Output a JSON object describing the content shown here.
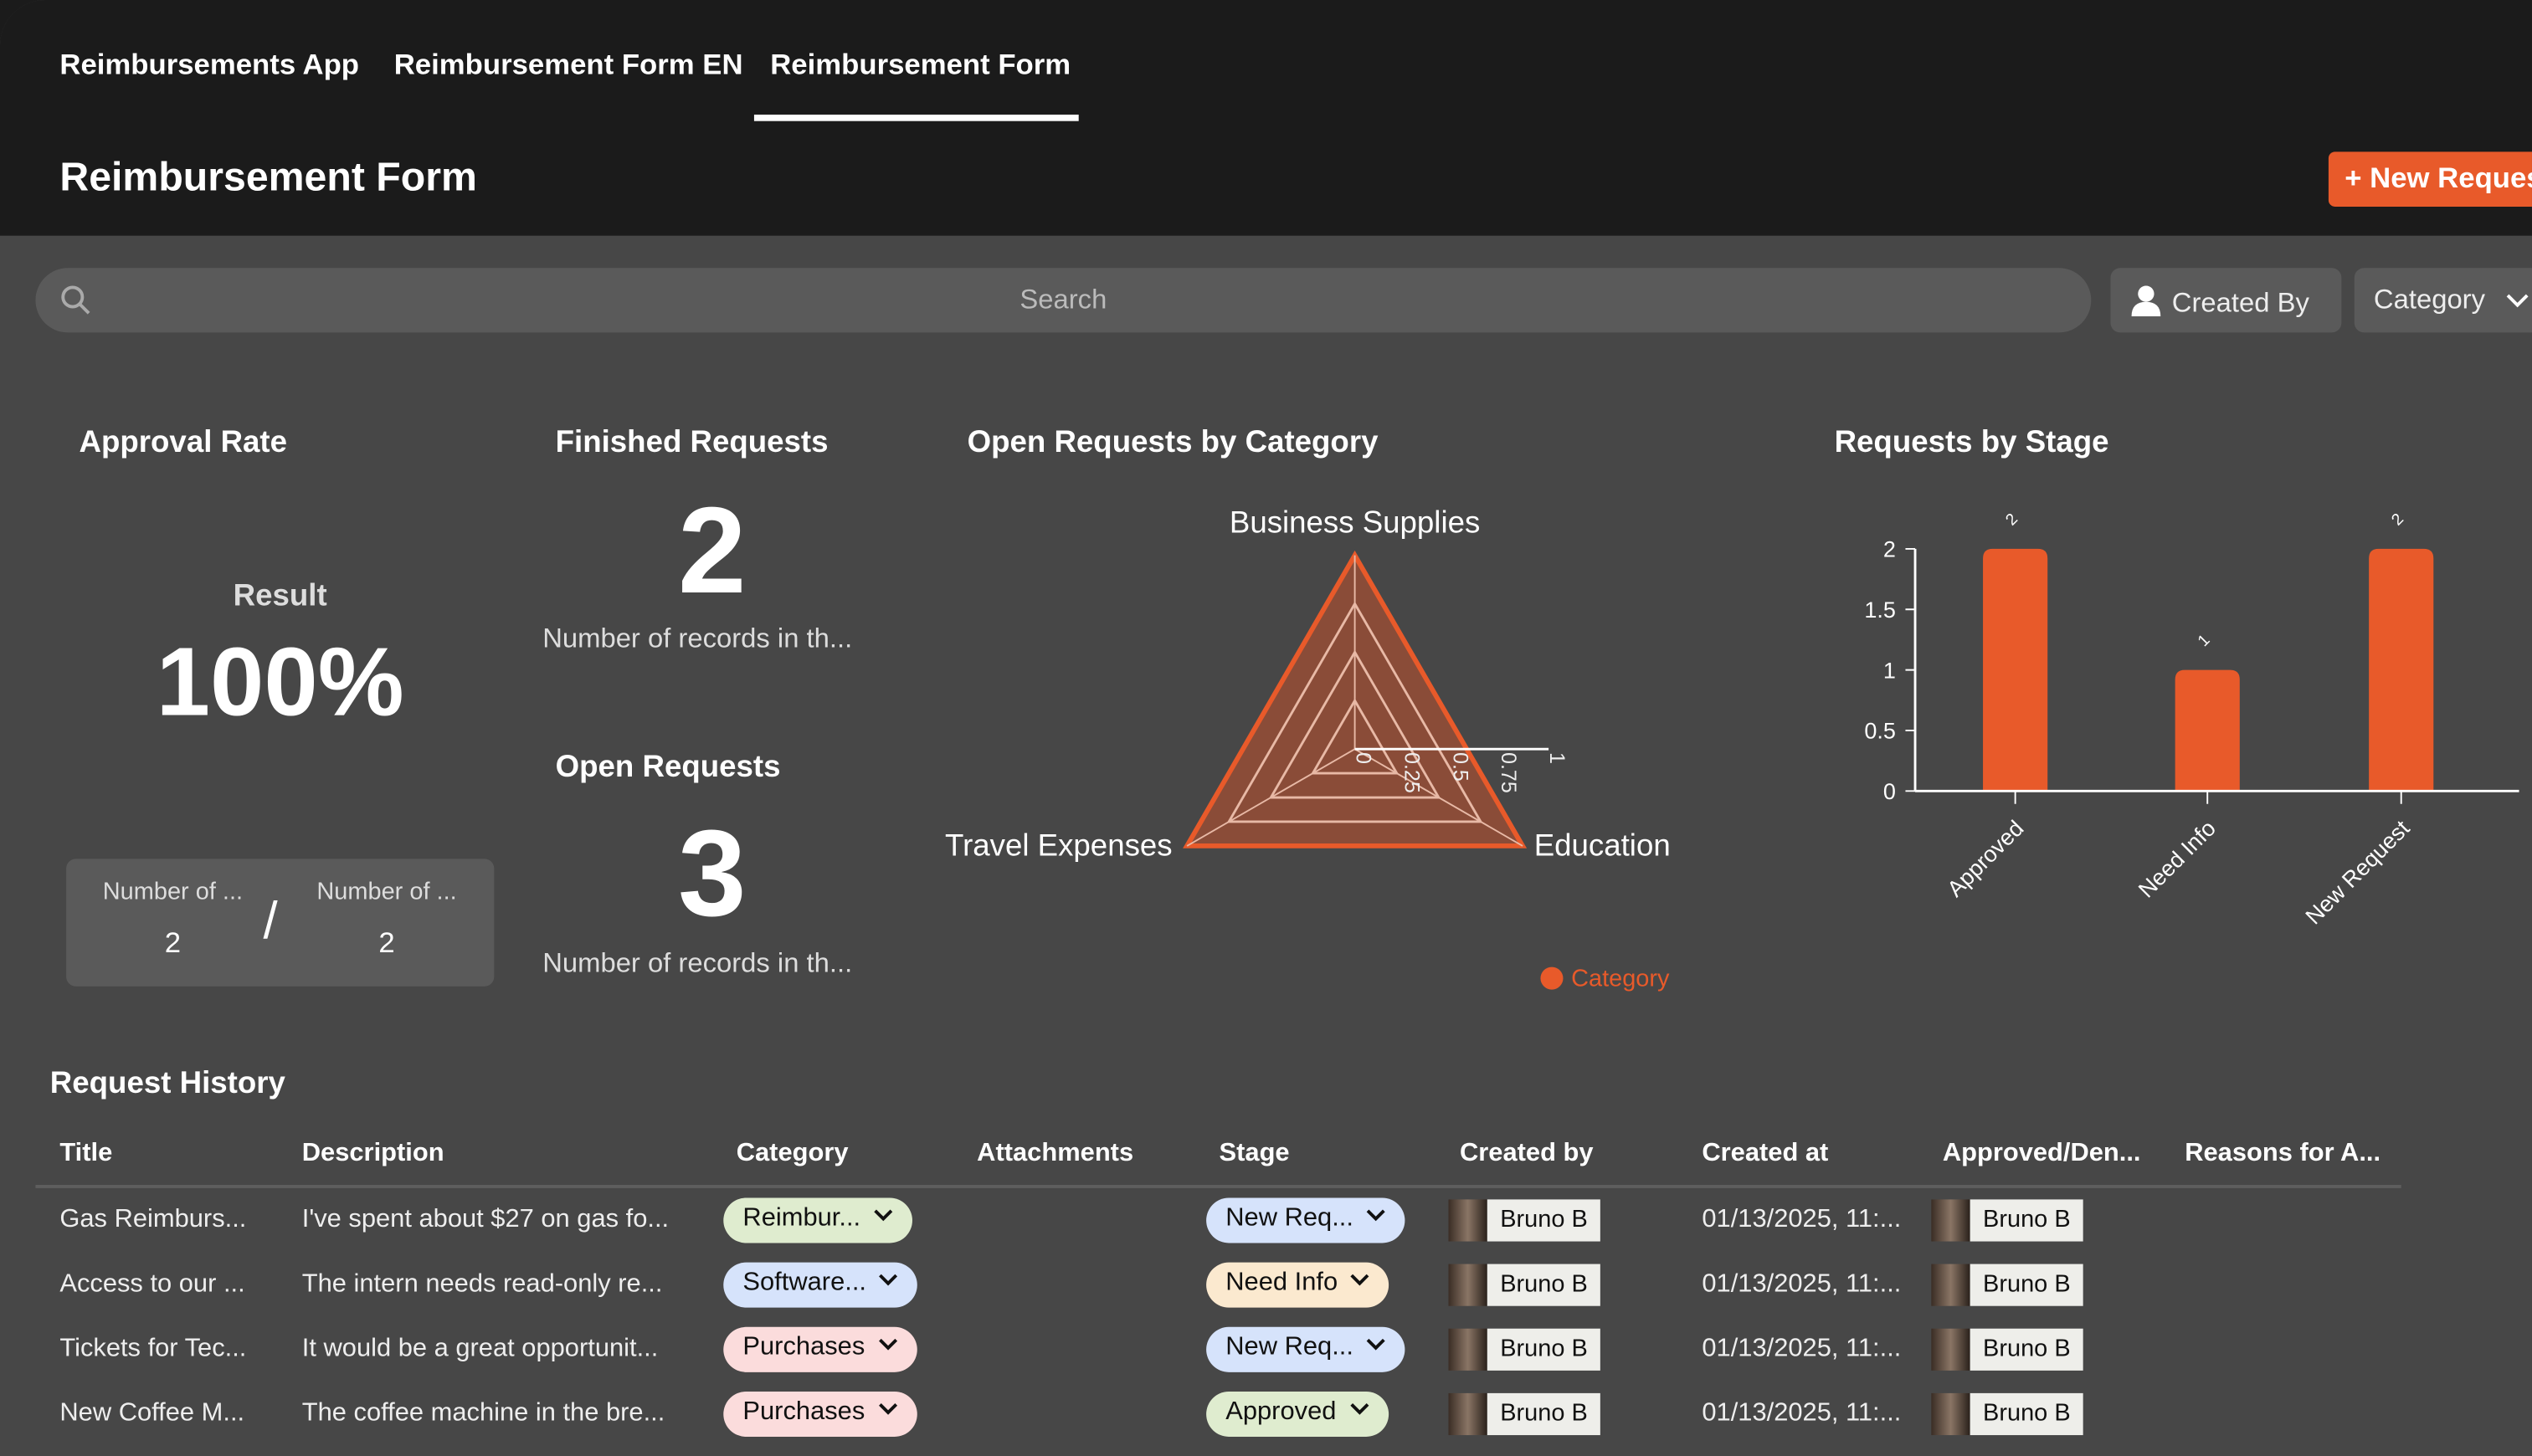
{
  "nav": {
    "tabs": [
      "Reimbursements App",
      "Reimbursement Form EN",
      "Reimbursement Form"
    ],
    "active_tab": 2
  },
  "header": {
    "title": "Reimbursement Form",
    "new_button": "+ New Request"
  },
  "filters": {
    "search_placeholder": "Search",
    "created_by": "Created By",
    "category": "Category"
  },
  "colors": {
    "accent": "#e85a2a",
    "background": "#474747",
    "header": "#1b1b1b"
  },
  "approval": {
    "title": "Approval Rate",
    "result_label": "Result",
    "value": "100%",
    "numerator_label": "Number of ...",
    "numerator": "2",
    "denominator_label": "Number of ...",
    "denominator": "2",
    "separator": "/"
  },
  "finished": {
    "title": "Finished Requests",
    "value": "2",
    "caption": "Number of records in th..."
  },
  "open": {
    "title": "Open Requests",
    "value": "3",
    "caption": "Number of records in th..."
  },
  "chart_data": [
    {
      "type": "radar",
      "title": "Open Requests by Category",
      "axes": [
        "Business Supplies",
        "Education",
        "Travel Expenses"
      ],
      "series": [
        {
          "name": "Category",
          "values": [
            1,
            1,
            1
          ]
        }
      ],
      "range": [
        0,
        1
      ],
      "ticks": [
        "0",
        "0.25",
        "0.5",
        "0.75",
        "1"
      ],
      "legend": "bottom-right"
    },
    {
      "type": "bar",
      "title": "Requests by Stage",
      "categories": [
        "Approved",
        "Need Info",
        "New Request"
      ],
      "values": [
        2,
        1,
        2
      ],
      "data_labels": [
        "2",
        "1",
        "2"
      ],
      "ylim": [
        0,
        2
      ],
      "yticks": [
        "0",
        "0.5",
        "1",
        "1.5",
        "2"
      ]
    }
  ],
  "history": {
    "title": "Request History",
    "columns": [
      "Title",
      "Description",
      "Category",
      "Attachments",
      "Stage",
      "Created by",
      "Created at",
      "Approved/Den...",
      "Reasons for A..."
    ],
    "rows": [
      {
        "title": "Gas Reimburs...",
        "description": "I've spent about $27 on gas fo...",
        "category": "Reimbur...",
        "category_color": "#dfeccf",
        "stage": "New Req...",
        "stage_color": "#d6e3fb",
        "created_by": "Bruno B",
        "created_at": "01/13/2025, 11:...",
        "approver": "Bruno B"
      },
      {
        "title": "Access to our ...",
        "description": "The intern needs read-only re...",
        "category": "Software...",
        "category_color": "#d6e3fb",
        "stage": "Need Info",
        "stage_color": "#fbe9cf",
        "created_by": "Bruno B",
        "created_at": "01/13/2025, 11:...",
        "approver": "Bruno B"
      },
      {
        "title": "Tickets for Tec...",
        "description": "It would be a great opportunit...",
        "category": "Purchases",
        "category_color": "#fbdcdc",
        "stage": "New Req...",
        "stage_color": "#d6e3fb",
        "created_by": "Bruno B",
        "created_at": "01/13/2025, 11:...",
        "approver": "Bruno B"
      },
      {
        "title": "New Coffee M...",
        "description": "The coffee machine in the bre...",
        "category": "Purchases",
        "category_color": "#fbdcdc",
        "stage": "Approved",
        "stage_color": "#dfeccf",
        "created_by": "Bruno B",
        "created_at": "01/13/2025, 11:...",
        "approver": "Bruno B"
      }
    ]
  }
}
